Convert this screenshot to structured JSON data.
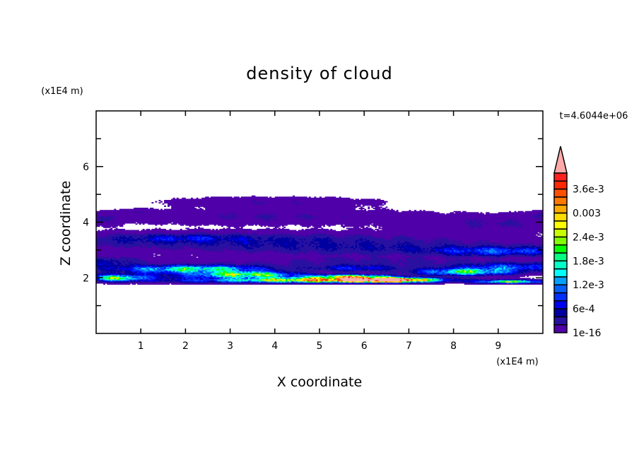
{
  "chart_data": {
    "type": "heatmap",
    "title": "density of cloud",
    "xlabel": "X coordinate",
    "ylabel": "Z coordinate",
    "x_unit": "(x1E4 m)",
    "y_unit": "(x1E4 m)",
    "time_label": "t=4.6044e+06",
    "xlim": [
      0,
      10
    ],
    "ylim": [
      0,
      8
    ],
    "x_ticks": [
      1,
      2,
      3,
      4,
      5,
      6,
      7,
      8,
      9
    ],
    "x_tick_labels": [
      "1",
      "2",
      "3",
      "4",
      "5",
      "6",
      "7",
      "8",
      "9"
    ],
    "y_ticks": [
      1,
      2,
      3,
      4,
      5,
      6,
      7
    ],
    "y_tick_labels": [
      "2",
      "4",
      "6"
    ],
    "y_labeled_ticks": [
      2,
      4,
      6
    ],
    "grid": false,
    "colorbar": {
      "placement": "right",
      "levels": [
        1e-16,
        0.0002,
        0.0004,
        0.0006,
        0.0008,
        0.001,
        0.0012,
        0.0014,
        0.0016,
        0.0018,
        0.002,
        0.0022,
        0.0024,
        0.0026,
        0.0028,
        0.003,
        0.0032,
        0.0034,
        0.0036,
        0.0038,
        0.004
      ],
      "labels": [
        {
          "level_index": 0,
          "text": "1e-16"
        },
        {
          "level_index": 3,
          "text": "6e-4"
        },
        {
          "level_index": 6,
          "text": "1.2e-3"
        },
        {
          "level_index": 9,
          "text": "1.8e-3"
        },
        {
          "level_index": 12,
          "text": "2.4e-3"
        },
        {
          "level_index": 15,
          "text": "0.003"
        },
        {
          "level_index": 18,
          "text": "3.6e-3"
        }
      ],
      "colors": [
        "#5000a8",
        "#2810a0",
        "#0000a0",
        "#0000f0",
        "#0030ff",
        "#0060ff",
        "#00a0ff",
        "#00ffff",
        "#00ffc8",
        "#00ff80",
        "#00ff00",
        "#80ff00",
        "#c8ff00",
        "#ffff00",
        "#ffdc00",
        "#ffaa00",
        "#ff7800",
        "#ff5000",
        "#ff2800",
        "#ff2020"
      ],
      "over_color": "#ffaaaa"
    },
    "cloud_blobs_note_units": "x and z in 1e4 m, value in density units",
    "cloud_blobs": [
      {
        "x": 3.9,
        "z": 4.72,
        "sx": 1.5,
        "sz": 0.12,
        "v": 0.00018
      },
      {
        "x": 0.9,
        "z": 4.4,
        "sx": 0.25,
        "sz": 0.05,
        "v": 0.00012
      },
      {
        "x": 3.8,
        "z": 4.2,
        "sx": 2.3,
        "sz": 0.18,
        "v": 0.0002
      },
      {
        "x": 0.1,
        "z": 4.1,
        "sx": 0.35,
        "sz": 0.14,
        "v": 0.00018
      },
      {
        "x": 9.0,
        "z": 3.95,
        "sx": 1.4,
        "sz": 0.2,
        "v": 0.0002
      },
      {
        "x": 9.9,
        "z": 4.25,
        "sx": 0.3,
        "sz": 0.1,
        "v": 0.00015
      },
      {
        "x": 3.0,
        "z": 3.35,
        "sx": 3.5,
        "sz": 0.18,
        "v": 0.00045
      },
      {
        "x": 2.0,
        "z": 3.45,
        "sx": 0.8,
        "sz": 0.08,
        "v": 0.0004
      },
      {
        "x": 7.0,
        "z": 3.05,
        "sx": 3.2,
        "sz": 0.14,
        "v": 0.00035
      },
      {
        "x": 9.0,
        "z": 2.95,
        "sx": 0.9,
        "sz": 0.1,
        "v": 0.0008
      },
      {
        "x": 0.3,
        "z": 2.55,
        "sx": 0.5,
        "sz": 0.15,
        "v": 0.0005
      },
      {
        "x": 6.3,
        "z": 2.55,
        "sx": 2.8,
        "sz": 0.2,
        "v": 0.00025
      },
      {
        "x": 5.8,
        "z": 2.35,
        "sx": 0.6,
        "sz": 0.08,
        "v": 0.0006
      },
      {
        "x": 2.2,
        "z": 2.32,
        "sx": 1.0,
        "sz": 0.09,
        "v": 0.0019
      },
      {
        "x": 3.4,
        "z": 2.12,
        "sx": 0.7,
        "sz": 0.07,
        "v": 0.0022
      },
      {
        "x": 1.3,
        "z": 2.05,
        "sx": 1.6,
        "sz": 0.12,
        "v": 0.0005
      },
      {
        "x": 0.5,
        "z": 2.0,
        "sx": 0.35,
        "sz": 0.07,
        "v": 0.0019
      },
      {
        "x": 2.8,
        "z": 1.9,
        "sx": 1.2,
        "sz": 0.05,
        "v": 0.0004
      },
      {
        "x": 5.3,
        "z": 1.93,
        "sx": 1.4,
        "sz": 0.06,
        "v": 0.0033
      },
      {
        "x": 6.5,
        "z": 1.93,
        "sx": 0.6,
        "sz": 0.05,
        "v": 0.0045
      },
      {
        "x": 5.7,
        "z": 2.05,
        "sx": 0.6,
        "sz": 0.05,
        "v": 0.0024
      },
      {
        "x": 8.3,
        "z": 2.22,
        "sx": 0.7,
        "sz": 0.08,
        "v": 0.0019
      },
      {
        "x": 9.3,
        "z": 2.4,
        "sx": 0.8,
        "sz": 0.09,
        "v": 0.0009
      },
      {
        "x": 9.3,
        "z": 1.87,
        "sx": 0.5,
        "sz": 0.04,
        "v": 0.0022
      }
    ]
  }
}
